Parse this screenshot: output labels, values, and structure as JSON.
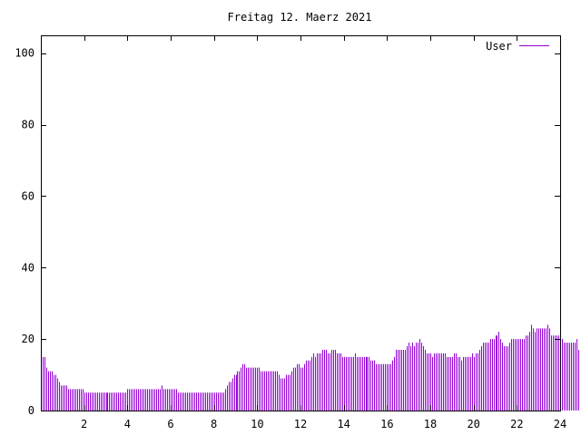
{
  "chart_data": {
    "type": "bar",
    "title": "Freitag 12. Maerz 2021",
    "xlabel": "",
    "ylabel": "",
    "xlim": [
      0,
      24
    ],
    "ylim": [
      0,
      105
    ],
    "x_ticks": [
      2,
      4,
      6,
      8,
      10,
      12,
      14,
      16,
      18,
      20,
      22,
      24
    ],
    "y_ticks": [
      0,
      20,
      40,
      60,
      80,
      100
    ],
    "legend_position": "top-right",
    "series": [
      {
        "name": "User",
        "color": "#9400d3",
        "interval_minutes": 5,
        "values": [
          15,
          15,
          15,
          12,
          11,
          11,
          11,
          10,
          10,
          9,
          8,
          7,
          7,
          7,
          7,
          6,
          6,
          6,
          6,
          6,
          6,
          6,
          6,
          6,
          5,
          5,
          5,
          5,
          5,
          5,
          5,
          5,
          5,
          5,
          5,
          5,
          5,
          5,
          5,
          5,
          5,
          5,
          5,
          5,
          5,
          5,
          5,
          5,
          6,
          6,
          6,
          6,
          6,
          6,
          6,
          6,
          6,
          6,
          6,
          6,
          6,
          6,
          6,
          6,
          6,
          6,
          6,
          7,
          6,
          6,
          6,
          6,
          6,
          6,
          6,
          6,
          5,
          5,
          5,
          5,
          5,
          5,
          5,
          5,
          5,
          5,
          5,
          5,
          5,
          5,
          5,
          5,
          5,
          5,
          5,
          5,
          5,
          5,
          5,
          5,
          5,
          5,
          6,
          7,
          8,
          8,
          9,
          10,
          10,
          11,
          11,
          12,
          13,
          13,
          12,
          12,
          12,
          12,
          12,
          12,
          12,
          12,
          11,
          11,
          11,
          11,
          11,
          11,
          11,
          11,
          11,
          11,
          10,
          9,
          9,
          9,
          10,
          10,
          10,
          11,
          12,
          12,
          13,
          13,
          12,
          12,
          13,
          14,
          14,
          14,
          15,
          16,
          15,
          16,
          16,
          16,
          17,
          17,
          17,
          16,
          16,
          17,
          17,
          17,
          16,
          16,
          16,
          15,
          15,
          15,
          15,
          15,
          15,
          15,
          16,
          15,
          15,
          15,
          15,
          15,
          15,
          15,
          15,
          14,
          14,
          14,
          13,
          13,
          13,
          13,
          13,
          13,
          13,
          13,
          13,
          14,
          15,
          17,
          17,
          17,
          17,
          17,
          17,
          18,
          19,
          18,
          19,
          18,
          19,
          19,
          20,
          19,
          18,
          17,
          16,
          16,
          16,
          15,
          16,
          16,
          16,
          16,
          16,
          16,
          16,
          15,
          15,
          15,
          15,
          16,
          16,
          15,
          15,
          14,
          15,
          15,
          15,
          15,
          15,
          16,
          15,
          16,
          16,
          17,
          18,
          19,
          19,
          19,
          19,
          20,
          20,
          20,
          21,
          21,
          22,
          20,
          19,
          18,
          18,
          18,
          19,
          20,
          20,
          20,
          20,
          20,
          20,
          20,
          20,
          21,
          21,
          22,
          24,
          23,
          22,
          23,
          23,
          23,
          23,
          23,
          23,
          24,
          23,
          21,
          21,
          21,
          21,
          21,
          20,
          20,
          19,
          19,
          19,
          19,
          19,
          19,
          19,
          20,
          17
        ]
      }
    ]
  }
}
